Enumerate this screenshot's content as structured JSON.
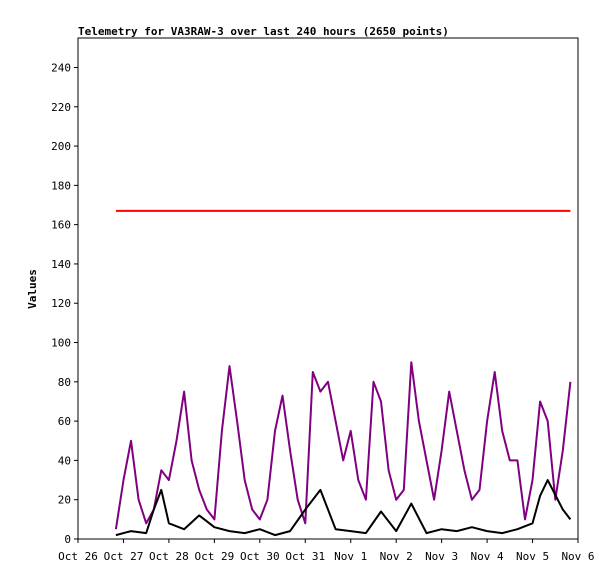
{
  "chart_data": {
    "type": "line",
    "title": "Telemetry for VA3RAW-3 over last 240 hours (2650 points)",
    "xlabel": "",
    "ylabel": "Values",
    "xlim": [
      "Oct 26",
      "Nov 6"
    ],
    "ylim": [
      0,
      255
    ],
    "x_ticks": [
      "Oct 26",
      "Oct 27",
      "Oct 28",
      "Oct 29",
      "Oct 30",
      "Oct 31",
      "Nov 1",
      "Nov 2",
      "Nov 3",
      "Nov 4",
      "Nov 5",
      "Nov 6"
    ],
    "y_ticks": [
      0,
      20,
      40,
      60,
      80,
      100,
      120,
      140,
      160,
      180,
      200,
      220,
      240
    ],
    "grid": false,
    "legend": "none",
    "x_days_span": [
      0,
      11
    ],
    "series": [
      {
        "color": "#ff0000",
        "x": [
          "Oct 26 20:00",
          "Nov 5 20:00"
        ],
        "values": [
          167,
          167
        ]
      },
      {
        "color": "#800080",
        "x": [
          "Oct 26 20:00",
          "Oct 27 00:00",
          "Oct 27 04:00",
          "Oct 27 08:00",
          "Oct 27 12:00",
          "Oct 27 16:00",
          "Oct 27 20:00",
          "Oct 28 00:00",
          "Oct 28 04:00",
          "Oct 28 08:00",
          "Oct 28 12:00",
          "Oct 28 16:00",
          "Oct 28 20:00",
          "Oct 29 00:00",
          "Oct 29 04:00",
          "Oct 29 08:00",
          "Oct 29 12:00",
          "Oct 29 16:00",
          "Oct 29 20:00",
          "Oct 30 00:00",
          "Oct 30 04:00",
          "Oct 30 08:00",
          "Oct 30 12:00",
          "Oct 30 16:00",
          "Oct 30 20:00",
          "Oct 31 00:00",
          "Oct 31 04:00",
          "Oct 31 08:00",
          "Oct 31 12:00",
          "Oct 31 16:00",
          "Oct 31 20:00",
          "Nov 1 00:00",
          "Nov 1 04:00",
          "Nov 1 08:00",
          "Nov 1 12:00",
          "Nov 1 16:00",
          "Nov 1 20:00",
          "Nov 2 00:00",
          "Nov 2 04:00",
          "Nov 2 08:00",
          "Nov 2 12:00",
          "Nov 2 16:00",
          "Nov 2 20:00",
          "Nov 3 00:00",
          "Nov 3 04:00",
          "Nov 3 08:00",
          "Nov 3 12:00",
          "Nov 3 16:00",
          "Nov 3 20:00",
          "Nov 4 00:00",
          "Nov 4 04:00",
          "Nov 4 08:00",
          "Nov 4 12:00",
          "Nov 4 16:00",
          "Nov 4 20:00",
          "Nov 5 00:00",
          "Nov 5 04:00",
          "Nov 5 08:00",
          "Nov 5 12:00",
          "Nov 5 16:00",
          "Nov 5 20:00"
        ],
        "values": [
          5,
          30,
          50,
          20,
          8,
          15,
          35,
          30,
          50,
          75,
          40,
          25,
          15,
          10,
          55,
          88,
          60,
          30,
          15,
          10,
          20,
          55,
          73,
          45,
          20,
          8,
          85,
          75,
          80,
          60,
          40,
          55,
          30,
          20,
          80,
          70,
          35,
          20,
          25,
          90,
          60,
          40,
          20,
          45,
          75,
          55,
          35,
          20,
          25,
          60,
          85,
          55,
          40,
          40,
          10,
          30,
          70,
          60,
          20,
          45,
          80
        ]
      },
      {
        "color": "#000000",
        "x": [
          "Oct 26 20:00",
          "Oct 27 04:00",
          "Oct 27 12:00",
          "Oct 27 16:00",
          "Oct 27 20:00",
          "Oct 28 00:00",
          "Oct 28 08:00",
          "Oct 28 16:00",
          "Oct 29 00:00",
          "Oct 29 08:00",
          "Oct 29 16:00",
          "Oct 30 00:00",
          "Oct 30 08:00",
          "Oct 30 16:00",
          "Oct 31 00:00",
          "Oct 31 08:00",
          "Oct 31 16:00",
          "Nov 1 00:00",
          "Nov 1 08:00",
          "Nov 1 16:00",
          "Nov 2 00:00",
          "Nov 2 08:00",
          "Nov 2 16:00",
          "Nov 3 00:00",
          "Nov 3 08:00",
          "Nov 3 16:00",
          "Nov 4 00:00",
          "Nov 4 08:00",
          "Nov 4 16:00",
          "Nov 5 00:00",
          "Nov 5 04:00",
          "Nov 5 08:00",
          "Nov 5 16:00",
          "Nov 5 20:00"
        ],
        "values": [
          2,
          4,
          3,
          15,
          25,
          8,
          5,
          12,
          6,
          4,
          3,
          5,
          2,
          4,
          15,
          25,
          5,
          4,
          3,
          14,
          4,
          18,
          3,
          5,
          4,
          6,
          4,
          3,
          5,
          8,
          22,
          30,
          15,
          10
        ]
      }
    ]
  }
}
